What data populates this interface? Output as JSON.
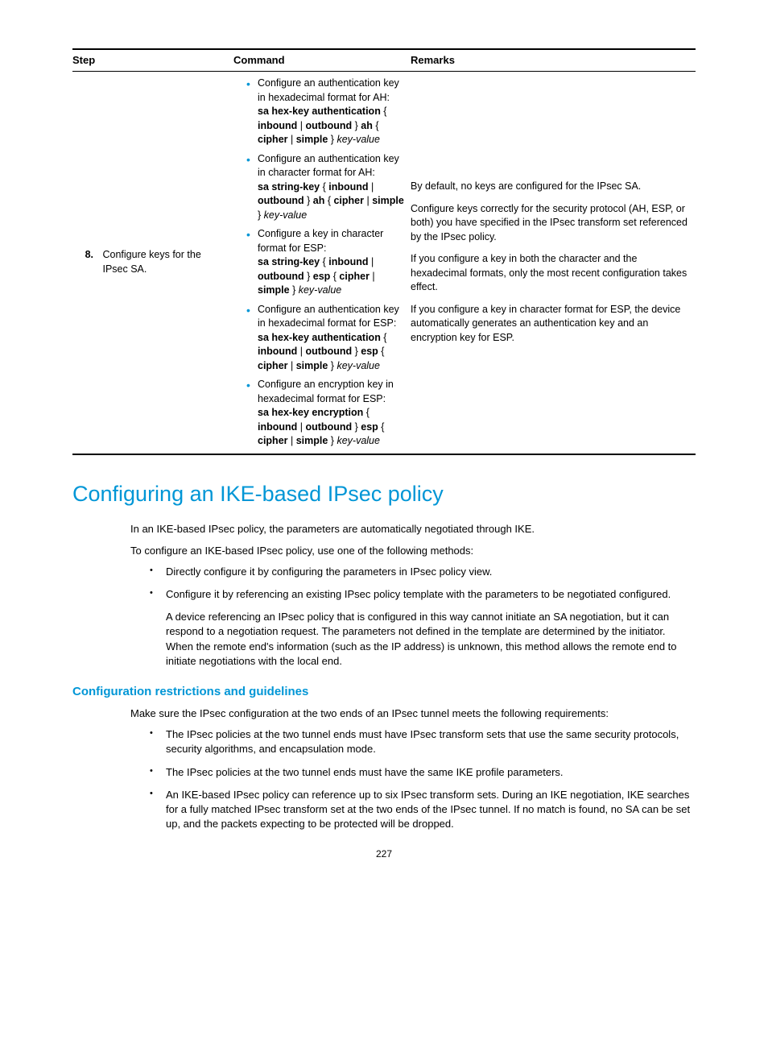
{
  "table": {
    "headers": {
      "step": "Step",
      "command": "Command",
      "remarks": "Remarks"
    },
    "row": {
      "num": "8.",
      "step_text": "Configure keys for the IPsec SA.",
      "commands": [
        {
          "intro": "Configure an authentication key in hexadecimal format for AH:",
          "cmd_parts": [
            "sa hex-key authentication",
            " { ",
            "inbound",
            " | ",
            "outbound",
            " } ",
            "ah",
            " { ",
            "cipher",
            " | ",
            "simple",
            " } "
          ],
          "tail_italic": "key-value"
        },
        {
          "intro": "Configure an authentication key in character format for AH:",
          "cmd_parts": [
            "sa string-key",
            " { ",
            "inbound",
            " | ",
            "outbound",
            " } ",
            "ah",
            " { ",
            "cipher",
            " | ",
            "simple",
            " } "
          ],
          "tail_italic": "key-value"
        },
        {
          "intro": "Configure a key in character format for ESP:",
          "cmd_parts": [
            "sa string-key",
            " { ",
            "inbound",
            " | ",
            "outbound",
            " } ",
            "esp",
            " { ",
            "cipher",
            " | ",
            "simple",
            " } "
          ],
          "tail_italic": "key-value"
        },
        {
          "intro": "Configure an authentication key in hexadecimal format for ESP:",
          "cmd_parts": [
            "sa hex-key authentication",
            " { ",
            "inbound",
            " | ",
            "outbound",
            " } ",
            "esp",
            " { ",
            "cipher",
            " | ",
            "simple",
            " } "
          ],
          "tail_italic": "key-value"
        },
        {
          "intro": "Configure an encryption key in hexadecimal format for ESP:",
          "cmd_parts": [
            "sa hex-key encryption",
            " { ",
            "inbound",
            " | ",
            "outbound",
            " } ",
            "esp",
            " { ",
            "cipher",
            " | ",
            "simple",
            " } "
          ],
          "tail_italic": "key-value"
        }
      ],
      "remarks": [
        "By default, no keys are configured for the IPsec SA.",
        "Configure keys correctly for the security protocol (AH, ESP, or both) you have specified in the IPsec transform set referenced by the IPsec policy.",
        "If you configure a key in both the character and the hexadecimal formats, only the most recent configuration takes effect.",
        "If you configure a key in character format for ESP, the device automatically generates an authentication key and an encryption key for ESP."
      ]
    }
  },
  "section": {
    "title": "Configuring an IKE-based IPsec policy",
    "p1": "In an IKE-based IPsec policy, the parameters are automatically negotiated through IKE.",
    "p2": "To configure an IKE-based IPsec policy, use one of the following methods:",
    "bullets": [
      {
        "text": "Directly configure it by configuring the parameters in IPsec policy view."
      },
      {
        "text": "Configure it by referencing an existing IPsec policy template with the parameters to be negotiated configured.",
        "sub": "A device referencing an IPsec policy that is configured in this way cannot initiate an SA negotiation, but it can respond to a negotiation request. The parameters not defined in the template are determined by the initiator. When the remote end's information (such as the IP address) is unknown, this method allows the remote end to initiate negotiations with the local end."
      }
    ],
    "sub_title": "Configuration restrictions and guidelines",
    "p3": "Make sure the IPsec configuration at the two ends of an IPsec tunnel meets the following requirements:",
    "bullets2": [
      "The IPsec policies at the two tunnel ends must have IPsec transform sets that use the same security protocols, security algorithms, and encapsulation mode.",
      "The IPsec policies at the two tunnel ends must have the same IKE profile parameters.",
      "An IKE-based IPsec policy can reference up to six IPsec transform sets. During an IKE negotiation, IKE searches for a fully matched IPsec transform set at the two ends of the IPsec tunnel. If no match is found, no SA can be set up, and the packets expecting to be protected will be dropped."
    ]
  },
  "page_number": "227",
  "colors": {
    "accent": "#0096d6"
  }
}
